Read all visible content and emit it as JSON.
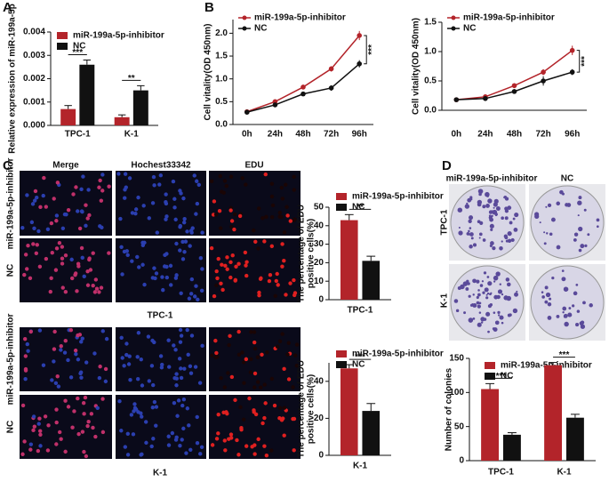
{
  "figure": {
    "panel_labels": [
      "A",
      "B",
      "C",
      "D"
    ],
    "edu_columns": [
      "Merge",
      "Hochest33342",
      "EDU"
    ],
    "edu_rows": [
      "miR-199a-5p-inhibitor",
      "NC"
    ],
    "edu_groups": [
      "TPC-1",
      "K-1"
    ],
    "colony_columns": [
      "miR-199a-5p-inhibitor",
      "NC"
    ],
    "colony_rows": [
      "TPC-1",
      "K-1"
    ]
  },
  "chart_data": [
    {
      "type": "bar",
      "ylabel": "Relative expression of miR-199a-5p",
      "categories": [
        "TPC-1",
        "K-1"
      ],
      "series": [
        {
          "name": "miR-199a-5p-inhibitor",
          "color": "#b3242a",
          "values": [
            0.0007,
            0.00035
          ],
          "errors": [
            0.00015,
            0.0001
          ]
        },
        {
          "name": "NC",
          "color": "#111111",
          "values": [
            0.0026,
            0.0015
          ],
          "errors": [
            0.0002,
            0.0002
          ]
        }
      ],
      "annotations": [
        "***",
        "**"
      ],
      "ylim": [
        0,
        0.004
      ],
      "yticks": [
        {
          "value": 0,
          "label": "0.000"
        },
        {
          "value": 0.001,
          "label": "0.001"
        },
        {
          "value": 0.002,
          "label": "0.002"
        },
        {
          "value": 0.003,
          "label": "0.003"
        },
        {
          "value": 0.004,
          "label": "0.004"
        }
      ]
    },
    {
      "type": "line",
      "ylabel": "Cell vitality(OD 450nm)",
      "categories": [
        "0h",
        "24h",
        "48h",
        "72h",
        "96h"
      ],
      "series": [
        {
          "name": "miR-199a-5p-inhibitor",
          "color": "#b3242a",
          "values": [
            0.28,
            0.5,
            0.82,
            1.22,
            1.95
          ],
          "errors": [
            0.05,
            0.04,
            0.05,
            0.06,
            0.1
          ]
        },
        {
          "name": "NC",
          "color": "#111111",
          "values": [
            0.27,
            0.43,
            0.67,
            0.8,
            1.33
          ],
          "errors": [
            0.04,
            0.03,
            0.04,
            0.06,
            0.08
          ]
        }
      ],
      "annotations": [
        "***"
      ],
      "ylim": [
        0,
        2.3
      ],
      "yticks": [
        {
          "value": 0,
          "label": "0.0"
        },
        {
          "value": 0.5,
          "label": "0.5"
        },
        {
          "value": 1,
          "label": "1.0"
        },
        {
          "value": 1.5,
          "label": "1.5"
        },
        {
          "value": 2,
          "label": "2.0"
        }
      ]
    },
    {
      "type": "line",
      "ylabel": "Cell vitality(OD 450nm)",
      "categories": [
        "0h",
        "24h",
        "48h",
        "72h",
        "96h"
      ],
      "series": [
        {
          "name": "miR-199a-5p-inhibitor",
          "color": "#b3242a",
          "values": [
            0.18,
            0.23,
            0.42,
            0.65,
            1.02
          ],
          "errors": [
            0.02,
            0.03,
            0.04,
            0.05,
            0.08
          ]
        },
        {
          "name": "NC",
          "color": "#111111",
          "values": [
            0.18,
            0.2,
            0.32,
            0.5,
            0.65
          ],
          "errors": [
            0.02,
            0.03,
            0.04,
            0.08,
            0.05
          ]
        }
      ],
      "annotations": [
        "***"
      ],
      "ylim": [
        0,
        1.5
      ],
      "yticks": [
        {
          "value": 0,
          "label": "0.0"
        },
        {
          "value": 0.5,
          "label": "0.5"
        },
        {
          "value": 1,
          "label": "1.0"
        },
        {
          "value": 1.5,
          "label": "1.5"
        }
      ]
    },
    {
      "type": "bar",
      "ylabel": [
        "The percentage of EDU",
        "positive cells(%)"
      ],
      "categories": [
        "TPC-1"
      ],
      "series": [
        {
          "name": "miR-199a-5p-inhibitor",
          "color": "#b3242a",
          "values": [
            43
          ],
          "errors": [
            3
          ]
        },
        {
          "name": "NC",
          "color": "#111111",
          "values": [
            21
          ],
          "errors": [
            2.5
          ]
        }
      ],
      "annotations": [
        "**"
      ],
      "ylim": [
        0,
        50
      ],
      "yticks": [
        0,
        10,
        20,
        30,
        40,
        50
      ]
    },
    {
      "type": "bar",
      "ylabel": [
        "The percentage of EDU",
        "positive cells(%)"
      ],
      "categories": [
        "K-1"
      ],
      "series": [
        {
          "name": "miR-199a-5p-inhibitor",
          "color": "#b3242a",
          "values": [
            47
          ],
          "errors": [
            2
          ]
        },
        {
          "name": "NC",
          "color": "#111111",
          "values": [
            24
          ],
          "errors": [
            4
          ]
        }
      ],
      "annotations": [
        "***"
      ],
      "ylim": [
        0,
        50
      ],
      "yticks": [
        0,
        20,
        40
      ]
    },
    {
      "type": "bar",
      "ylabel": "Number of colonies",
      "categories": [
        "TPC-1",
        "K-1"
      ],
      "series": [
        {
          "name": "miR-199a-5p-inhibitor",
          "color": "#b3242a",
          "values": [
            105,
            140
          ],
          "errors": [
            8,
            4
          ]
        },
        {
          "name": "NC",
          "color": "#111111",
          "values": [
            38,
            63
          ],
          "errors": [
            3,
            5
          ]
        }
      ],
      "annotations": [
        "***",
        "***"
      ],
      "ylim": [
        0,
        150
      ],
      "yticks": [
        0,
        50,
        100,
        150
      ]
    }
  ]
}
